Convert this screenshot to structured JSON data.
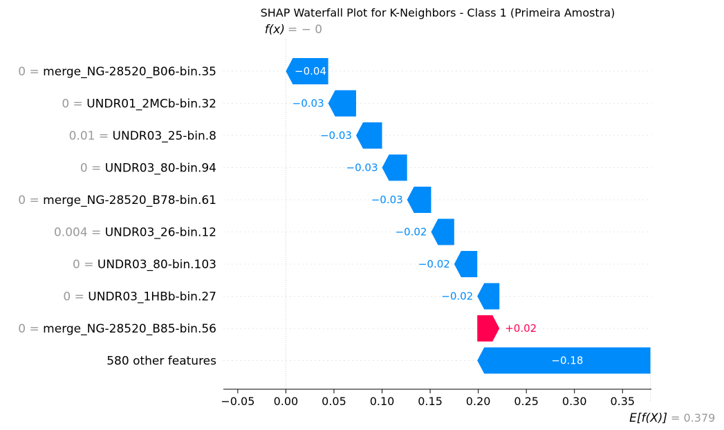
{
  "chart_data": {
    "type": "waterfall",
    "title": "SHAP Waterfall Plot for K-Neighbors - Class 1 (Primeira Amostra)",
    "fx_label": "f(x)",
    "fx_value": "= − 0",
    "fx": 0.0,
    "base_label": "E[f(X)]",
    "base_value_text": "= 0.379",
    "base_value": 0.379,
    "xlim": [
      -0.065,
      0.38
    ],
    "x_ticks": [
      -0.05,
      0.0,
      0.05,
      0.1,
      0.15,
      0.2,
      0.25,
      0.3,
      0.35
    ],
    "x_tick_labels": [
      "−0.05",
      "0.00",
      "0.05",
      "0.10",
      "0.15",
      "0.20",
      "0.25",
      "0.30",
      "0.35"
    ],
    "colors": {
      "negative": "#008bfb",
      "positive": "#ff0051",
      "value_text": "#999999"
    },
    "rows": [
      {
        "value": "0",
        "feature": "merge_NG-28520_B06-bin.35",
        "start": 0.044,
        "end": 0.0,
        "label": "−0.04"
      },
      {
        "value": "0",
        "feature": "UNDR01_2MCb-bin.32",
        "start": 0.073,
        "end": 0.044,
        "label": "−0.03"
      },
      {
        "value": "0.01",
        "feature": "UNDR03_25-bin.8",
        "start": 0.1,
        "end": 0.073,
        "label": "−0.03"
      },
      {
        "value": "0",
        "feature": "UNDR03_80-bin.94",
        "start": 0.126,
        "end": 0.1,
        "label": "−0.03"
      },
      {
        "value": "0",
        "feature": "merge_NG-28520_B78-bin.61",
        "start": 0.151,
        "end": 0.126,
        "label": "−0.03"
      },
      {
        "value": "0.004",
        "feature": "UNDR03_26-bin.12",
        "start": 0.175,
        "end": 0.151,
        "label": "−0.02"
      },
      {
        "value": "0",
        "feature": "UNDR03_80-bin.103",
        "start": 0.199,
        "end": 0.175,
        "label": "−0.02"
      },
      {
        "value": "0",
        "feature": "UNDR03_1HBb-bin.27",
        "start": 0.222,
        "end": 0.199,
        "label": "−0.02"
      },
      {
        "value": "0",
        "feature": "merge_NG-28520_B85-bin.56",
        "start": 0.199,
        "end": 0.222,
        "label": "+0.02"
      },
      {
        "value": "",
        "feature": "580 other features",
        "start": 0.379,
        "end": 0.199,
        "label": "−0.18"
      }
    ]
  }
}
